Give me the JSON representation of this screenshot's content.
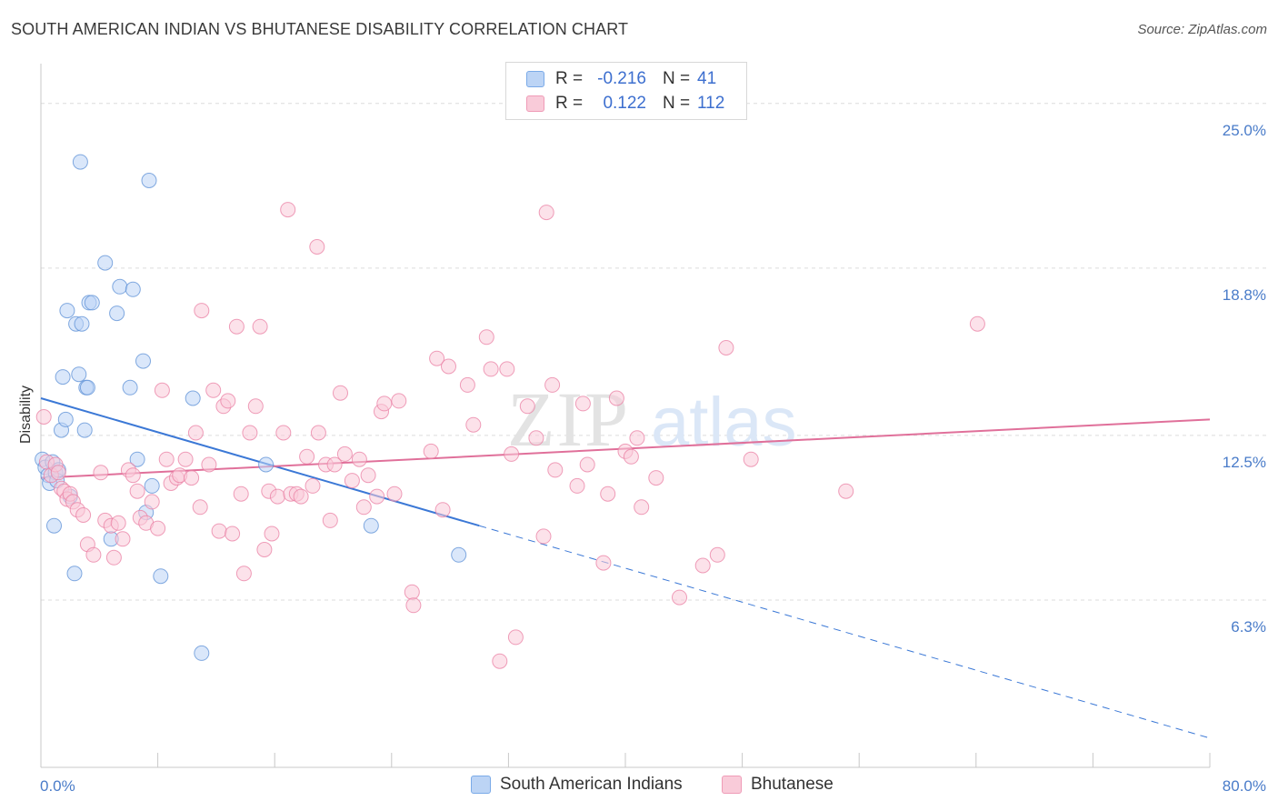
{
  "title": "SOUTH AMERICAN INDIAN VS BHUTANESE DISABILITY CORRELATION CHART",
  "source": "Source: ZipAtlas.com",
  "watermark": {
    "zip": "ZIP",
    "atlas": "atlas"
  },
  "legend": {
    "rows": [
      {
        "r_label": "R =",
        "r_value": "-0.216",
        "n_label": "N =",
        "n_value": "41",
        "color": "#7aaae8",
        "fill": "#bcd4f5"
      },
      {
        "r_label": "R =",
        "r_value": "0.122",
        "n_label": "N =",
        "n_value": "112",
        "color": "#ef9bb7",
        "fill": "#f9cbd9"
      }
    ]
  },
  "bottom_legend": [
    {
      "label": "South American Indians",
      "color": "#7aaae8",
      "fill": "#bcd4f5"
    },
    {
      "label": "Bhutanese",
      "color": "#ef9bb7",
      "fill": "#f9cbd9"
    }
  ],
  "chart_data": {
    "type": "scatter",
    "title": "SOUTH AMERICAN INDIAN VS BHUTANESE DISABILITY CORRELATION CHART",
    "xlabel": "",
    "ylabel": "Disability",
    "xlim": [
      0,
      80
    ],
    "ylim": [
      0,
      26.5
    ],
    "x_tick_labels": [
      "0.0%",
      "80.0%"
    ],
    "y_ticks": [
      6.3,
      12.5,
      18.8,
      25.0
    ],
    "y_tick_labels": [
      "6.3%",
      "12.5%",
      "18.8%",
      "25.0%"
    ],
    "grid": true,
    "series": [
      {
        "name": "South American Indians",
        "color": "#5b8fd6",
        "fill": "#bcd4f5",
        "points": [
          [
            0.1,
            11.6
          ],
          [
            0.3,
            11.3
          ],
          [
            0.5,
            11.0
          ],
          [
            0.6,
            10.7
          ],
          [
            0.8,
            11.5
          ],
          [
            0.9,
            9.1
          ],
          [
            1.0,
            11.1
          ],
          [
            1.1,
            10.8
          ],
          [
            1.2,
            11.2
          ],
          [
            1.4,
            12.7
          ],
          [
            1.5,
            14.7
          ],
          [
            1.7,
            13.1
          ],
          [
            1.8,
            17.2
          ],
          [
            2.0,
            10.2
          ],
          [
            2.3,
            7.3
          ],
          [
            2.4,
            16.7
          ],
          [
            2.6,
            14.8
          ],
          [
            2.7,
            22.8
          ],
          [
            2.8,
            16.7
          ],
          [
            3.0,
            12.7
          ],
          [
            3.1,
            14.3
          ],
          [
            3.2,
            14.3
          ],
          [
            3.3,
            17.5
          ],
          [
            3.5,
            17.5
          ],
          [
            4.4,
            19.0
          ],
          [
            4.8,
            8.6
          ],
          [
            5.2,
            17.1
          ],
          [
            5.4,
            18.1
          ],
          [
            6.1,
            14.3
          ],
          [
            6.3,
            18.0
          ],
          [
            6.6,
            11.6
          ],
          [
            7.0,
            15.3
          ],
          [
            7.2,
            9.6
          ],
          [
            7.4,
            22.1
          ],
          [
            7.6,
            10.6
          ],
          [
            8.2,
            7.2
          ],
          [
            10.4,
            13.9
          ],
          [
            11.0,
            4.3
          ],
          [
            15.4,
            11.4
          ],
          [
            22.6,
            9.1
          ],
          [
            28.6,
            8.0
          ]
        ]
      },
      {
        "name": "Bhutanese",
        "color": "#e97fa3",
        "fill": "#f9cbd9",
        "points": [
          [
            0.2,
            13.2
          ],
          [
            0.4,
            11.5
          ],
          [
            0.7,
            11.0
          ],
          [
            1.0,
            11.4
          ],
          [
            1.2,
            11.1
          ],
          [
            1.4,
            10.5
          ],
          [
            1.6,
            10.4
          ],
          [
            1.8,
            10.1
          ],
          [
            2.0,
            10.3
          ],
          [
            2.2,
            10.0
          ],
          [
            2.5,
            9.7
          ],
          [
            2.9,
            9.5
          ],
          [
            3.2,
            8.4
          ],
          [
            3.6,
            8.0
          ],
          [
            4.1,
            11.1
          ],
          [
            4.4,
            9.3
          ],
          [
            4.8,
            9.1
          ],
          [
            5.0,
            7.9
          ],
          [
            5.3,
            9.2
          ],
          [
            5.6,
            8.6
          ],
          [
            6.0,
            11.2
          ],
          [
            6.3,
            11.0
          ],
          [
            6.6,
            10.4
          ],
          [
            6.8,
            9.4
          ],
          [
            7.2,
            9.2
          ],
          [
            7.6,
            10.0
          ],
          [
            8.0,
            9.0
          ],
          [
            8.3,
            14.2
          ],
          [
            8.6,
            11.6
          ],
          [
            8.9,
            10.7
          ],
          [
            9.3,
            10.9
          ],
          [
            9.5,
            11.0
          ],
          [
            9.9,
            11.6
          ],
          [
            10.3,
            10.9
          ],
          [
            10.6,
            12.6
          ],
          [
            10.9,
            9.8
          ],
          [
            11.0,
            17.2
          ],
          [
            11.5,
            11.4
          ],
          [
            11.8,
            14.2
          ],
          [
            12.2,
            8.9
          ],
          [
            12.5,
            13.6
          ],
          [
            12.8,
            13.8
          ],
          [
            13.1,
            8.8
          ],
          [
            13.4,
            16.6
          ],
          [
            13.7,
            10.3
          ],
          [
            13.9,
            7.3
          ],
          [
            14.3,
            12.6
          ],
          [
            14.7,
            13.6
          ],
          [
            15.0,
            16.6
          ],
          [
            15.3,
            8.2
          ],
          [
            15.6,
            10.4
          ],
          [
            15.8,
            8.8
          ],
          [
            16.2,
            10.2
          ],
          [
            16.6,
            12.6
          ],
          [
            16.9,
            21.0
          ],
          [
            17.1,
            10.3
          ],
          [
            17.5,
            10.3
          ],
          [
            17.8,
            10.2
          ],
          [
            18.2,
            11.7
          ],
          [
            18.6,
            10.6
          ],
          [
            18.9,
            19.6
          ],
          [
            19.0,
            12.6
          ],
          [
            19.5,
            11.4
          ],
          [
            19.8,
            9.3
          ],
          [
            20.1,
            11.4
          ],
          [
            20.5,
            14.1
          ],
          [
            20.8,
            11.8
          ],
          [
            21.3,
            10.8
          ],
          [
            21.8,
            11.6
          ],
          [
            22.1,
            9.8
          ],
          [
            22.4,
            11.0
          ],
          [
            23.0,
            10.2
          ],
          [
            23.3,
            13.4
          ],
          [
            23.5,
            13.7
          ],
          [
            24.2,
            10.3
          ],
          [
            24.5,
            13.8
          ],
          [
            25.4,
            6.6
          ],
          [
            25.5,
            6.1
          ],
          [
            26.7,
            11.9
          ],
          [
            27.1,
            15.4
          ],
          [
            27.5,
            9.7
          ],
          [
            27.9,
            15.1
          ],
          [
            29.2,
            14.4
          ],
          [
            29.6,
            12.9
          ],
          [
            30.5,
            16.2
          ],
          [
            30.8,
            15.0
          ],
          [
            31.4,
            4.0
          ],
          [
            31.9,
            15.0
          ],
          [
            32.2,
            11.8
          ],
          [
            32.5,
            4.9
          ],
          [
            33.3,
            13.6
          ],
          [
            33.9,
            12.4
          ],
          [
            34.4,
            8.7
          ],
          [
            34.6,
            20.9
          ],
          [
            35.0,
            14.4
          ],
          [
            35.2,
            11.2
          ],
          [
            36.7,
            10.6
          ],
          [
            37.1,
            13.7
          ],
          [
            37.4,
            11.4
          ],
          [
            38.5,
            7.7
          ],
          [
            38.8,
            10.3
          ],
          [
            39.4,
            13.9
          ],
          [
            40.0,
            11.9
          ],
          [
            40.4,
            11.7
          ],
          [
            40.8,
            12.4
          ],
          [
            41.1,
            9.8
          ],
          [
            42.1,
            10.9
          ],
          [
            43.7,
            6.4
          ],
          [
            45.3,
            7.6
          ],
          [
            46.3,
            8.0
          ],
          [
            46.9,
            15.8
          ],
          [
            48.6,
            11.6
          ],
          [
            55.1,
            10.4
          ],
          [
            64.1,
            16.7
          ]
        ]
      }
    ],
    "trend_lines": [
      {
        "series": "South American Indians",
        "x1": 0,
        "y1": 13.9,
        "x2": 80,
        "y2": 1.1,
        "solid_until_x": 30
      },
      {
        "series": "Bhutanese",
        "x1": 0,
        "y1": 10.9,
        "x2": 80,
        "y2": 13.1
      }
    ]
  }
}
